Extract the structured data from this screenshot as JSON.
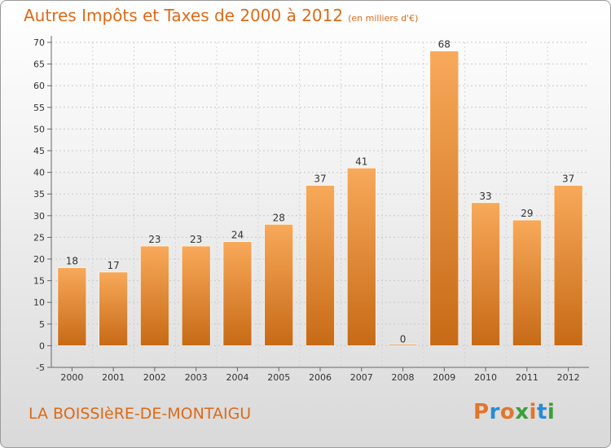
{
  "header": {
    "title": "Autres Impôts et Taxes de 2000 à 2012",
    "unit": "(en milliers d'€)"
  },
  "footer": {
    "commune": "LA BOISSIèRE-DE-MONTAIGU",
    "brand": "Proxiti"
  },
  "colors": {
    "bar_light": "#f8a95a",
    "bar_dark": "#c76a16",
    "title": "#dd6a17",
    "brand_letters": [
      "#e3752a",
      "#2a8bd4",
      "#e3752a",
      "#3aa03a",
      "#e3752a",
      "#2a8bd4",
      "#3aa03a"
    ]
  },
  "chart_data": {
    "type": "bar",
    "categories": [
      "2000",
      "2001",
      "2002",
      "2003",
      "2004",
      "2005",
      "2006",
      "2007",
      "2008",
      "2009",
      "2010",
      "2011",
      "2012"
    ],
    "values": [
      18,
      17,
      23,
      23,
      24,
      28,
      37,
      41,
      0,
      68,
      33,
      29,
      37
    ],
    "ylim": [
      -5,
      70
    ],
    "yticks": [
      -5,
      0,
      5,
      10,
      15,
      20,
      25,
      30,
      35,
      40,
      45,
      50,
      55,
      60,
      65,
      70
    ],
    "grid": "horizontal dashed",
    "legend": "none"
  }
}
